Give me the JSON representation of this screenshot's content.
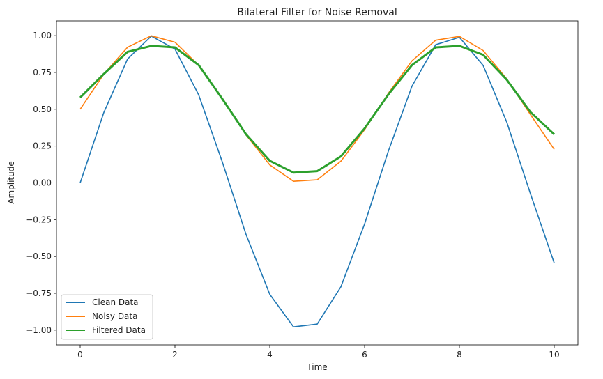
{
  "chart_data": {
    "type": "line",
    "title": "Bilateral Filter for Noise Removal",
    "xlabel": "Time",
    "ylabel": "Amplitude",
    "xlim": [
      -0.5,
      10.5
    ],
    "ylim": [
      -1.1,
      1.1
    ],
    "xticks": [
      0,
      2,
      4,
      6,
      8,
      10
    ],
    "xtick_labels": [
      "0",
      "2",
      "4",
      "6",
      "8",
      "10"
    ],
    "yticks": [
      1.0,
      0.75,
      0.5,
      0.25,
      0.0,
      -0.25,
      -0.5,
      -0.75,
      -1.0
    ],
    "ytick_labels": [
      "1.00",
      "0.75",
      "0.50",
      "0.25",
      "0.00",
      "−0.25",
      "−0.50",
      "−0.75",
      "−1.00"
    ],
    "legend_position": "lower-left",
    "series": [
      {
        "name": "Clean Data",
        "color": "#1f77b4",
        "x": [
          0.0,
          0.5,
          1.0,
          1.5,
          2.0,
          2.5,
          3.0,
          3.5,
          4.0,
          4.5,
          5.0,
          5.5,
          6.0,
          6.5,
          7.0,
          7.5,
          8.0,
          8.5,
          9.0,
          9.5,
          10.0
        ],
        "y": [
          0.0,
          0.479,
          0.841,
          0.997,
          0.909,
          0.598,
          0.141,
          -0.351,
          -0.757,
          -0.978,
          -0.959,
          -0.706,
          -0.279,
          0.215,
          0.657,
          0.938,
          0.989,
          0.798,
          0.412,
          -0.075,
          -0.544
        ]
      },
      {
        "name": "Noisy Data",
        "color": "#ff7f0e",
        "x": [
          0.0,
          0.5,
          1.0,
          1.5,
          2.0,
          2.5,
          3.0,
          3.5,
          4.0,
          4.5,
          5.0,
          5.5,
          6.0,
          6.5,
          7.0,
          7.5,
          8.0,
          8.5,
          9.0,
          9.5,
          10.0
        ],
        "y": [
          0.5,
          0.739,
          0.921,
          0.999,
          0.955,
          0.799,
          0.571,
          0.325,
          0.122,
          0.011,
          0.021,
          0.147,
          0.361,
          0.608,
          0.829,
          0.969,
          0.995,
          0.899,
          0.706,
          0.463,
          0.228
        ]
      },
      {
        "name": "Filtered Data",
        "color": "#2ca02c",
        "x": [
          0.0,
          0.5,
          1.0,
          1.5,
          2.0,
          2.5,
          3.0,
          3.5,
          4.0,
          4.5,
          5.0,
          5.5,
          6.0,
          6.5,
          7.0,
          7.5,
          8.0,
          8.5,
          9.0,
          9.5,
          10.0
        ],
        "y": [
          0.58,
          0.74,
          0.89,
          0.93,
          0.92,
          0.8,
          0.57,
          0.33,
          0.15,
          0.07,
          0.08,
          0.18,
          0.37,
          0.6,
          0.8,
          0.92,
          0.93,
          0.87,
          0.7,
          0.48,
          0.33
        ]
      }
    ]
  }
}
